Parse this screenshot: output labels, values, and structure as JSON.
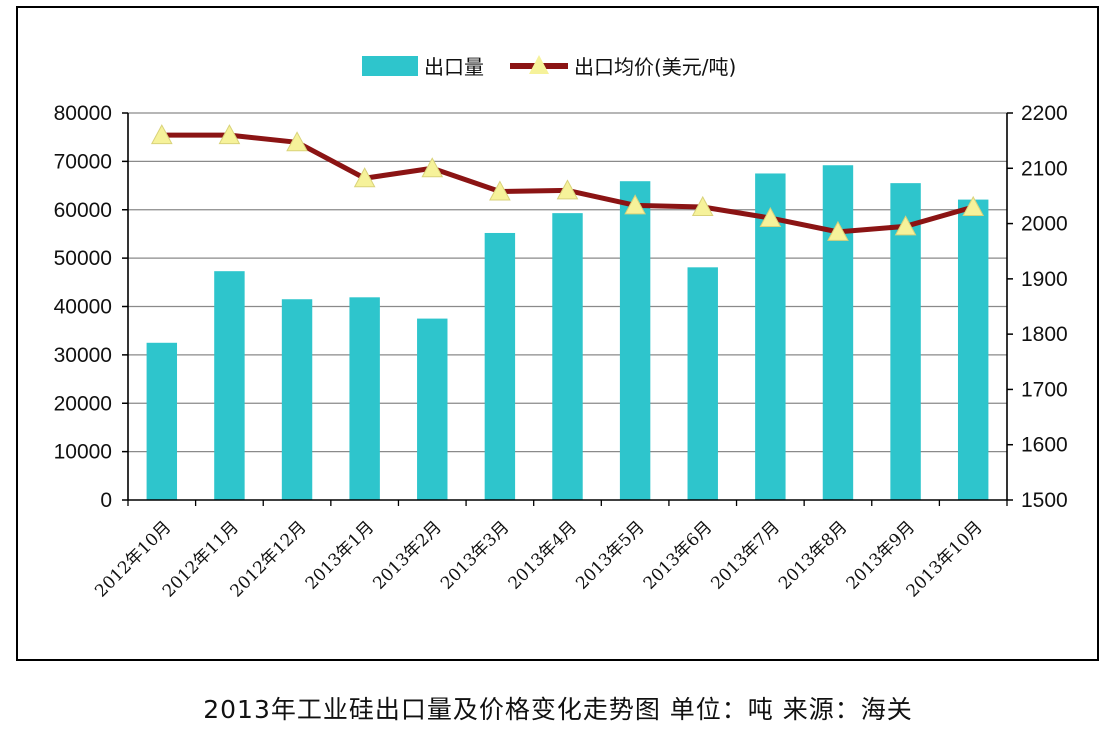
{
  "caption": "2013年工业硅出口量及价格变化走势图 单位：吨 来源：海关",
  "chart_data": {
    "type": "bar",
    "categories": [
      "2012年10月",
      "2012年11月",
      "2012年12月",
      "2013年1月",
      "2013年2月",
      "2013年3月",
      "2013年4月",
      "2013年5月",
      "2013年6月",
      "2013年7月",
      "2013年8月",
      "2013年9月",
      "2013年10月"
    ],
    "series": [
      {
        "name": "出口量",
        "type": "bar",
        "axis": "left",
        "color": "#2ec5cc",
        "values": [
          32500,
          47300,
          41500,
          41900,
          37500,
          55200,
          59300,
          65900,
          48100,
          67500,
          69200,
          65500,
          62100
        ]
      },
      {
        "name": "出口均价(美元/吨)",
        "type": "line",
        "axis": "right",
        "color": "#8b1414",
        "marker_color": "#f6f29a",
        "values": [
          2160,
          2160,
          2147,
          2082,
          2100,
          2058,
          2060,
          2033,
          2030,
          2010,
          1985,
          1995,
          2030
        ]
      }
    ],
    "y_left": {
      "min": 0,
      "max": 80000,
      "ticks": [
        "0",
        "10000",
        "20000",
        "30000",
        "40000",
        "50000",
        "60000",
        "70000",
        "80000"
      ]
    },
    "y_right": {
      "min": 1500,
      "max": 2200,
      "ticks": [
        "1500",
        "1600",
        "1700",
        "1800",
        "1900",
        "2000",
        "2100",
        "2200"
      ]
    },
    "legend": {
      "position": "top"
    },
    "grid": true
  }
}
